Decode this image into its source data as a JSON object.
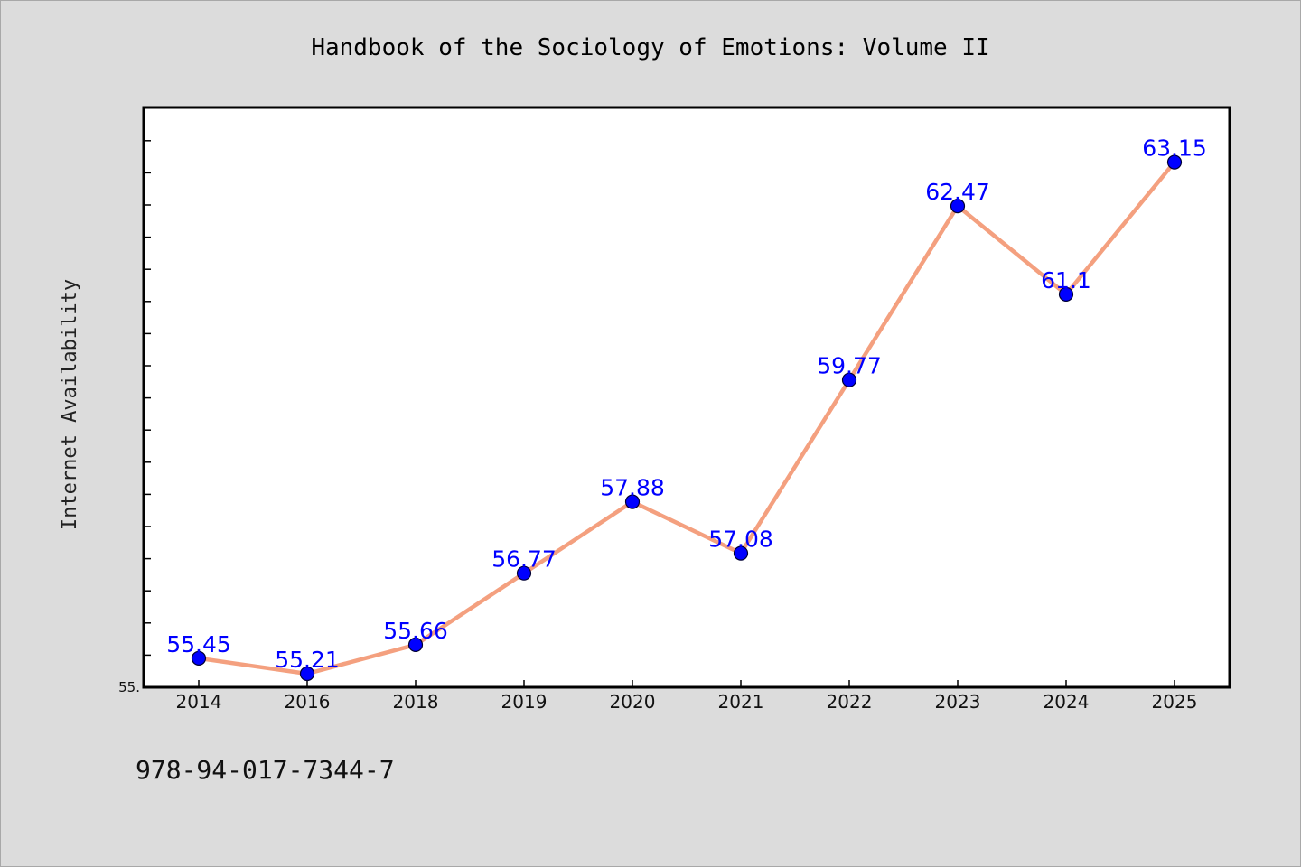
{
  "chart_data": {
    "type": "line",
    "title": "Handbook of the Sociology of Emotions: Volume II",
    "xlabel": "",
    "ylabel": "Internet Availability",
    "categories": [
      "2014",
      "2016",
      "2018",
      "2019",
      "2020",
      "2021",
      "2022",
      "2023",
      "2024",
      "2025"
    ],
    "series": [
      {
        "values": [
          55.45,
          55.21,
          55.66,
          56.77,
          57.88,
          57.08,
          59.77,
          62.47,
          61.1,
          63.15
        ],
        "data_labels": [
          "55.45",
          "55.21",
          "55.66",
          "56.77",
          "57.88",
          "57.08",
          "59.77",
          "62.47",
          "61.1",
          "63.15"
        ]
      }
    ],
    "ylim": [
      55.0,
      64.0
    ],
    "ytick_labels": [
      "55."
    ],
    "grid": false,
    "legend": "none",
    "colors": {
      "line": "#f4a07f",
      "marker": "#0000ff",
      "marker_edge": "#000033",
      "data_label": "#0000ff",
      "plot_background": "#ffffff",
      "page_background": "#dcdcdc"
    }
  },
  "footer": {
    "isbn": "978-94-017-7344-7"
  }
}
